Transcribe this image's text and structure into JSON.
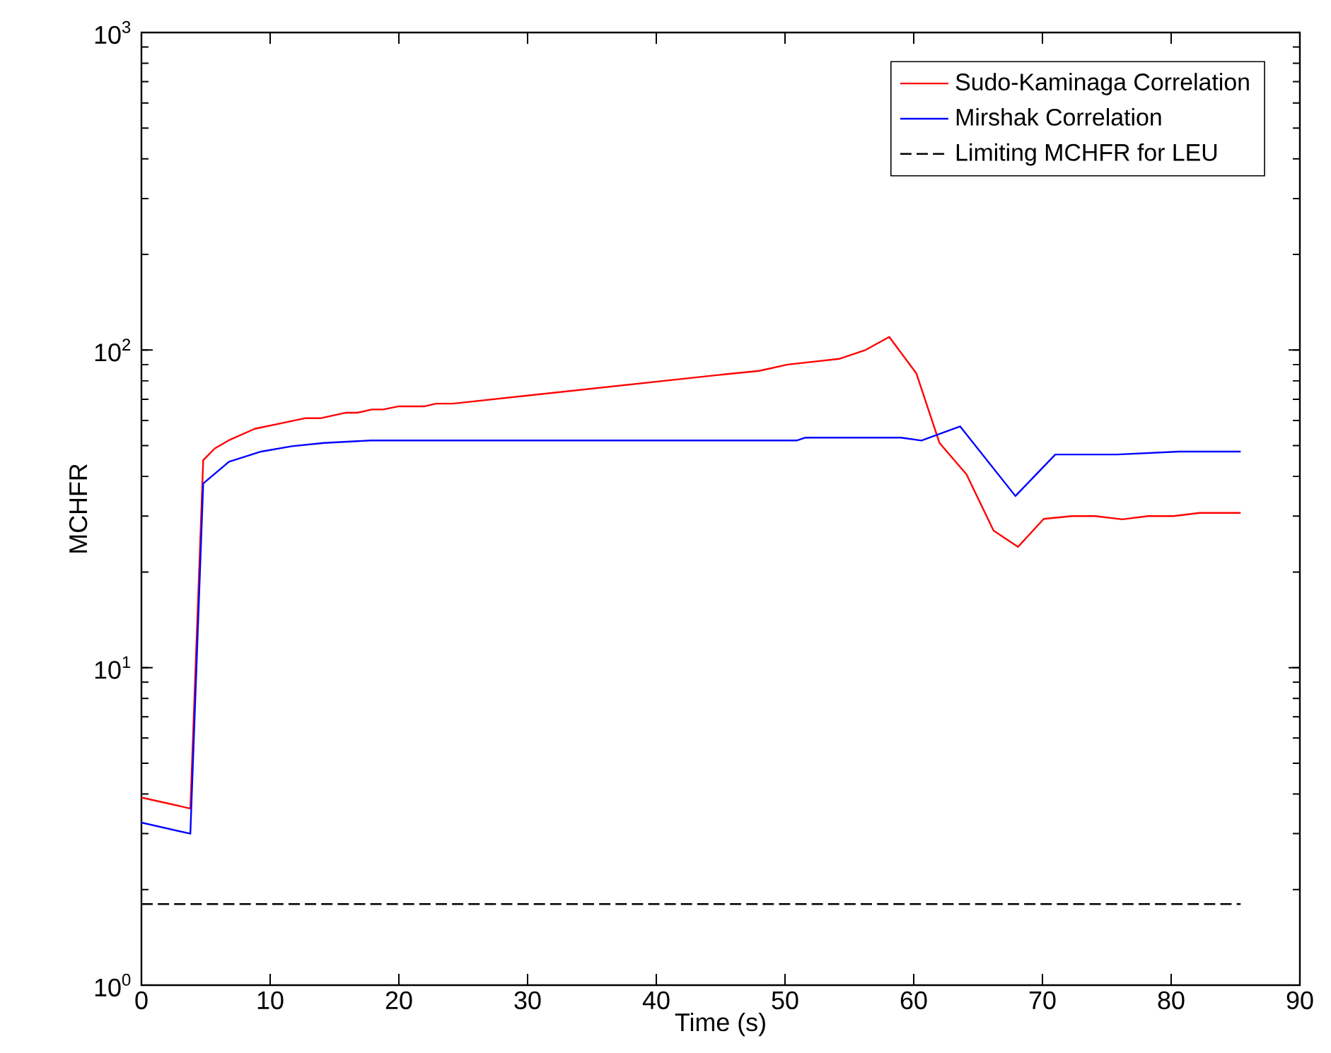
{
  "chart_data": {
    "type": "line",
    "xlabel": "Time (s)",
    "ylabel": "MCHFR",
    "log": "y",
    "legend": "top right",
    "xlim": [
      0,
      90
    ],
    "xticks": [
      0,
      10,
      20,
      30,
      40,
      50,
      60,
      70,
      80,
      90
    ],
    "ylim": [
      1,
      1000
    ],
    "yticks": [
      {
        "value": 1,
        "label": "10$^{0}$"
      },
      {
        "value": 10,
        "label": "10$^{1}$"
      },
      {
        "value": 100,
        "label": "10$^{2}$"
      },
      {
        "value": 1000,
        "label": "10$^{3}$"
      }
    ],
    "series": [
      {
        "name": "Sudo-Kaminaga Correlation",
        "color": "#ff0000",
        "x": [
          0,
          3.8,
          4.8,
          5.7,
          6.8,
          8.8,
          11,
          12.7,
          13.9,
          15.9,
          16.8,
          17.9,
          18.8,
          20,
          22,
          22.9,
          24.2,
          45,
          48,
          50.2,
          54.2,
          56.2,
          58.1,
          60.2,
          62,
          64.1,
          66.2,
          68.1,
          70.1,
          72.3,
          74.1,
          76.2,
          78.2,
          80.2,
          82.2,
          85.4
        ],
        "values": [
          3.9,
          3.6,
          45,
          49,
          52,
          56.5,
          59,
          61,
          61,
          63.5,
          63.5,
          65,
          65,
          66.5,
          66.5,
          67.8,
          67.8,
          83.6,
          86,
          90,
          93.8,
          99.8,
          110,
          84.5,
          51,
          40.6,
          27,
          24,
          29.4,
          30,
          30,
          29.3,
          30,
          30,
          30.7,
          30.7
        ]
      },
      {
        "name": "Mirshak Correlation",
        "color": "#0000ff",
        "x": [
          0,
          3.8,
          4.8,
          6.8,
          9.3,
          11.7,
          14.2,
          17.8,
          50.9,
          51.6,
          59,
          60.6,
          63.6,
          67.9,
          71,
          75.8,
          80.6,
          85.4
        ],
        "values": [
          3.25,
          3.0,
          38,
          44.5,
          47.9,
          49.8,
          51,
          51.9,
          51.9,
          53,
          53,
          51.9,
          57.5,
          34.7,
          46.9,
          46.9,
          47.9,
          47.9
        ]
      },
      {
        "name": "Limiting MCHFR for LEU",
        "color": "#000000",
        "line_style": "dashed",
        "x": [
          0,
          85.4
        ],
        "values": [
          1.8,
          1.8
        ]
      }
    ]
  }
}
